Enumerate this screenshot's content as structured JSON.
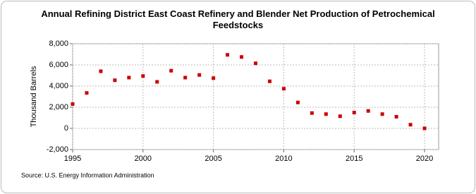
{
  "chart_data": {
    "type": "scatter",
    "title": "Annual Refining District East Coast Refinery and Blender Net Production of Petrochemical Feedstocks",
    "y_label": "Thousand Barrels",
    "source": "Source: U.S. Energy Information Administration",
    "x": [
      1995,
      1996,
      1997,
      1998,
      1999,
      2000,
      2001,
      2002,
      2003,
      2004,
      2005,
      2006,
      2007,
      2008,
      2009,
      2010,
      2011,
      2012,
      2013,
      2014,
      2015,
      2016,
      2017,
      2018,
      2019,
      2020
    ],
    "series": [
      {
        "name": "East Coast Refinery and Blender Net Production of Petrochemical Feedstocks",
        "color": "#cc0000",
        "values": [
          2300,
          3350,
          5400,
          4550,
          4800,
          4950,
          4400,
          5450,
          4800,
          5050,
          4750,
          6950,
          6750,
          6150,
          4450,
          3750,
          2450,
          1450,
          1350,
          1150,
          1500,
          1650,
          1350,
          1100,
          350,
          0
        ]
      }
    ],
    "xlim": [
      1995,
      2021
    ],
    "xticks": [
      1995,
      2000,
      2005,
      2010,
      2015,
      2020
    ],
    "ylim": [
      -2000,
      8000
    ],
    "yticks": [
      {
        "value": -2000,
        "label": "-2,000"
      },
      0,
      {
        "value": 2000,
        "label": "2,000"
      },
      {
        "value": 4000,
        "label": "4,000"
      },
      {
        "value": 6000,
        "label": "6,000"
      },
      {
        "value": 8000,
        "label": "8,000"
      }
    ],
    "grid": true
  }
}
